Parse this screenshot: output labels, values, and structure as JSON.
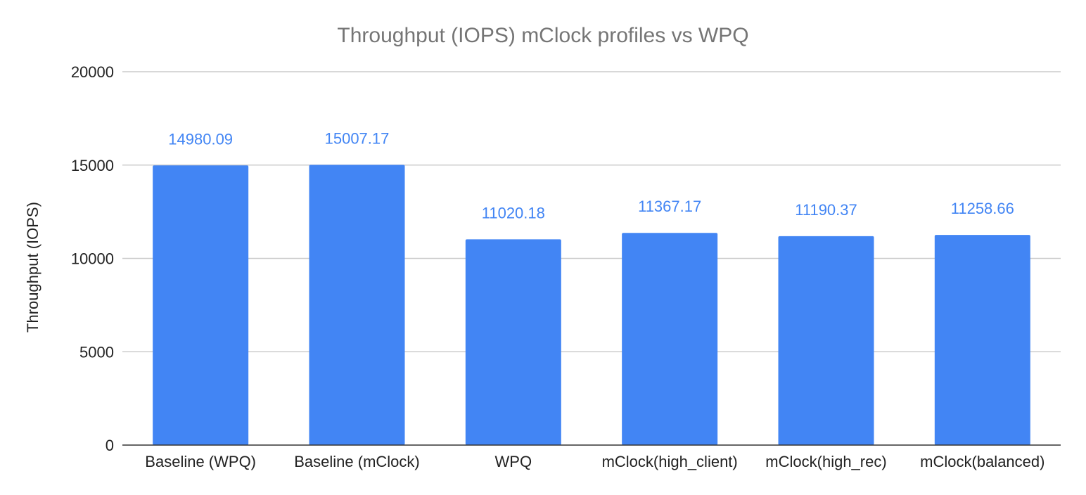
{
  "chart_data": {
    "type": "bar",
    "title": "Throughput (IOPS) mClock profiles vs WPQ",
    "xlabel": "",
    "ylabel": "Throughput (IOPS)",
    "ylim": [
      0,
      20000
    ],
    "yticks": [
      "0",
      "5000",
      "10000",
      "15000",
      "20000"
    ],
    "grid": true,
    "legend": "none",
    "categories": [
      "Baseline (WPQ)",
      "Baseline (mClock)",
      "WPQ",
      "mClock(high_client)",
      "mClock(high_rec)",
      "mClock(balanced)"
    ],
    "values": [
      14980.09,
      15007.17,
      11020.18,
      11367.17,
      11190.37,
      11258.66
    ],
    "data_labels": [
      "14980.09",
      "15007.17",
      "11020.18",
      "11367.17",
      "11190.37",
      "11258.66"
    ],
    "bar_color": "#4285f4",
    "data_label_color": "#4285f4"
  }
}
